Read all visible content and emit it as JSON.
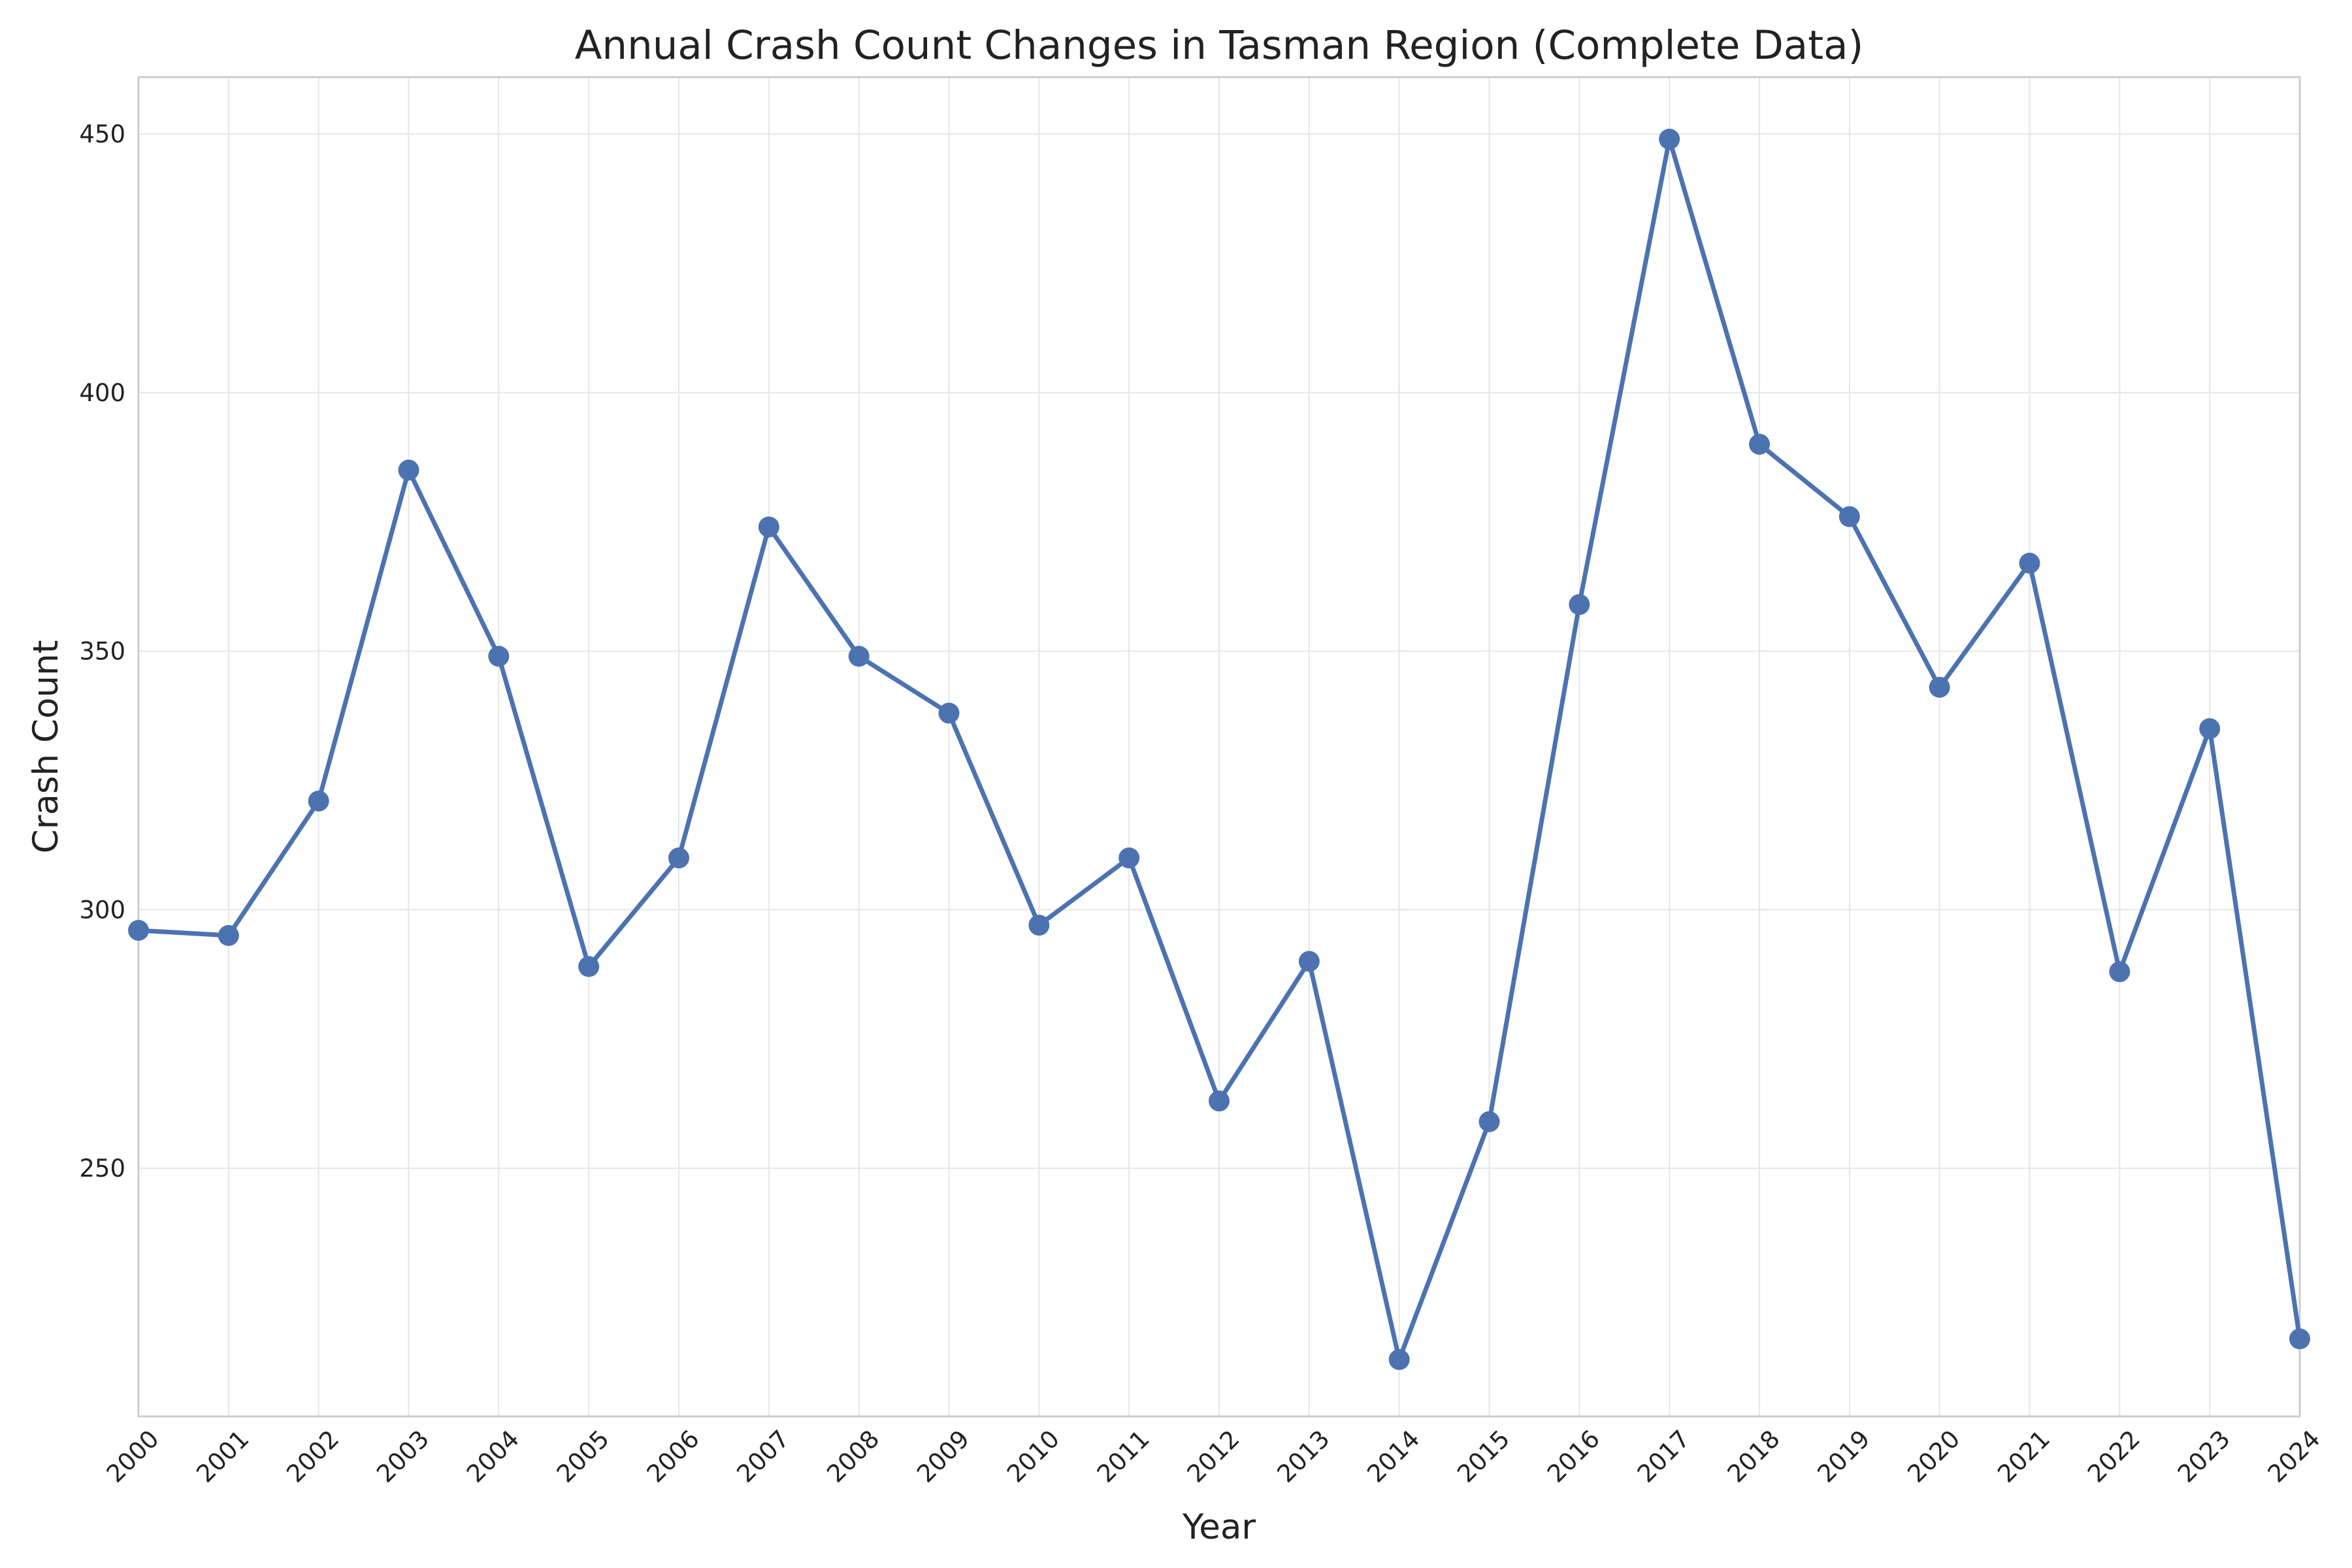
{
  "chart_data": {
    "type": "line",
    "title": "Annual Crash Count Changes in Tasman Region (Complete Data)",
    "xlabel": "Year",
    "ylabel": "Crash Count",
    "x": [
      2000,
      2001,
      2002,
      2003,
      2004,
      2005,
      2006,
      2007,
      2008,
      2009,
      2010,
      2011,
      2012,
      2013,
      2014,
      2015,
      2016,
      2017,
      2018,
      2019,
      2020,
      2021,
      2022,
      2023,
      2024
    ],
    "series": [
      {
        "values": [
          296,
          295,
          321,
          385,
          349,
          289,
          310,
          374,
          349,
          338,
          297,
          310,
          263,
          290,
          213,
          259,
          359,
          449,
          390,
          376,
          343,
          367,
          288,
          335,
          217
        ]
      }
    ],
    "xlim": [
      2000,
      2024
    ],
    "ylim": [
      202,
      461
    ],
    "yticks": [
      250,
      300,
      350,
      400,
      450
    ],
    "grid": true,
    "legend": "none",
    "colors": {
      "line": "#4c72b0",
      "marker": "#4c72b0"
    }
  }
}
